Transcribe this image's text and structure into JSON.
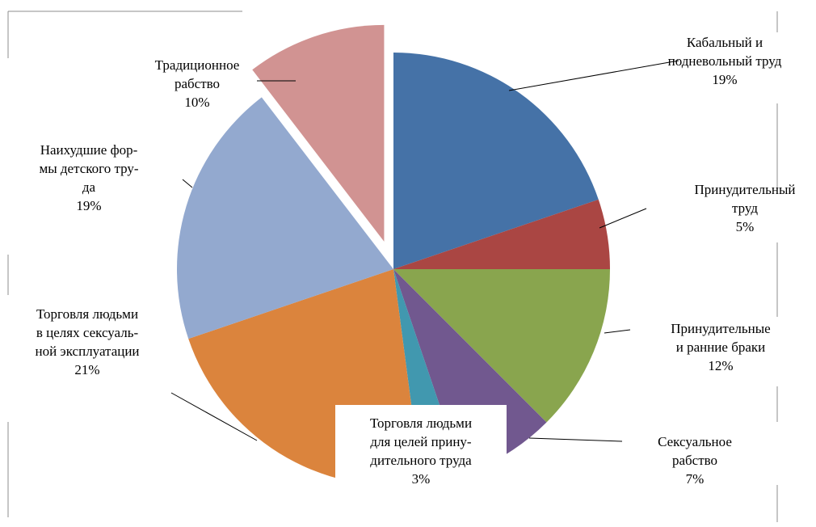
{
  "chart_data": {
    "type": "pie",
    "slices": [
      {
        "key": "bonded",
        "label_lines": [
          "Кабальный и",
          "подневольный труд"
        ],
        "value_label": "19%",
        "value": 19,
        "color": "#4572a7"
      },
      {
        "key": "forced",
        "label_lines": [
          "Принудительный",
          "труд"
        ],
        "value_label": "5%",
        "value": 5,
        "color": "#aa4643"
      },
      {
        "key": "marriage",
        "label_lines": [
          "Принудительные",
          "и ранние браки"
        ],
        "value_label": "12%",
        "value": 12,
        "color": "#89a54e"
      },
      {
        "key": "sexual",
        "label_lines": [
          "Сексуальное",
          "рабство"
        ],
        "value_label": "7%",
        "value": 7,
        "color": "#71588f"
      },
      {
        "key": "trafficking_forced",
        "label_lines": [
          "Торговля людьми",
          "для целей прину-",
          "дительного труда"
        ],
        "value_label": "3%",
        "value": 3,
        "color": "#4198af"
      },
      {
        "key": "trafficking_sexual",
        "label_lines": [
          "Торговля людьми",
          "в целях сексуаль-",
          "ной эксплуатации"
        ],
        "value_label": "21%",
        "value": 21,
        "color": "#db843d"
      },
      {
        "key": "child_labour",
        "label_lines": [
          "Наихудшие фор-",
          "мы детского тру-",
          "да"
        ],
        "value_label": "19%",
        "value": 19,
        "color": "#93a9cf"
      },
      {
        "key": "traditional",
        "label_lines": [
          "Традиционное",
          "рабство"
        ],
        "value_label": "10%",
        "value": 10,
        "color": "#d19392",
        "exploded": true
      }
    ]
  }
}
